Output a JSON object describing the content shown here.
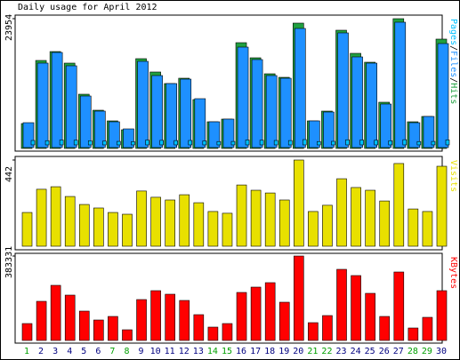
{
  "chart_data": {
    "type": "bar",
    "title": "Daily usage for April 2012",
    "categories": [
      "1",
      "2",
      "3",
      "4",
      "5",
      "6",
      "7",
      "8",
      "9",
      "10",
      "11",
      "12",
      "13",
      "14",
      "15",
      "16",
      "17",
      "18",
      "19",
      "20",
      "21",
      "22",
      "23",
      "24",
      "25",
      "26",
      "27",
      "28",
      "29",
      "30"
    ],
    "category_colors": [
      "#00a000",
      "#000080",
      "#000080",
      "#000080",
      "#000080",
      "#000080",
      "#00a000",
      "#00a000",
      "#000080",
      "#000080",
      "#000080",
      "#000080",
      "#000080",
      "#00a000",
      "#00a000",
      "#000080",
      "#000080",
      "#000080",
      "#000080",
      "#000080",
      "#00a000",
      "#00a000",
      "#000080",
      "#000080",
      "#000080",
      "#000080",
      "#000080",
      "#00a000",
      "#00a000",
      "#000080"
    ],
    "panels": [
      {
        "ylim": [
          0,
          23954
        ],
        "yticks": [
          23954
        ],
        "separator": "/",
        "series": [
          {
            "name": "Pages",
            "color": "#00c0ff",
            "values": [
              820,
              780,
              900,
              860,
              760,
              700,
              650,
              600,
              880,
              840,
              800,
              820,
              740,
              620,
              640,
              900,
              860,
              820,
              800,
              980,
              620,
              660,
              940,
              900,
              860,
              760,
              960,
              620,
              640,
              920
            ]
          },
          {
            "name": "Files",
            "color": "#1e90ff",
            "values": [
              4594,
              15587,
              17555,
              15094,
              9516,
              6727,
              4758,
              3445,
              15915,
              13290,
              11813,
              12633,
              9024,
              4758,
              5250,
              18540,
              16243,
              13290,
              12797,
              21985,
              4922,
              6563,
              21165,
              16735,
              15587,
              8039,
              23134,
              4594,
              5742,
              19196
            ]
          },
          {
            "name": "Hits",
            "color": "#20a040",
            "values": [
              4594,
              16243,
              17884,
              15751,
              10008,
              7055,
              5086,
              3445,
              16571,
              14110,
              11977,
              12962,
              9024,
              4922,
              5414,
              19524,
              16735,
              13782,
              13126,
              23134,
              5086,
              6891,
              21821,
              17555,
              15915,
              8532,
              23954,
              4922,
              5907,
              20181
            ]
          }
        ]
      },
      {
        "ylim": [
          0,
          442
        ],
        "yticks": [
          442
        ],
        "series": [
          {
            "name": "Visits",
            "color": "#e8e000",
            "values": [
              173,
              292,
              305,
              255,
              214,
              196,
              173,
              164,
              283,
              251,
              237,
              264,
              223,
              178,
              169,
              314,
              287,
              273,
              237,
              442,
              178,
              210,
              346,
              301,
              287,
              232,
              424,
              191,
              178,
              410
            ]
          }
        ]
      },
      {
        "ylim": [
          0,
          383331
        ],
        "yticks": [
          383331
        ],
        "series": [
          {
            "name": "KBytes",
            "color": "#ff0000",
            "values": [
              76665,
              177540,
              250170,
              205785,
              133155,
              92805,
              108945,
              48420,
              185610,
              225960,
              209820,
              181575,
              117015,
              60525,
              76665,
              217890,
              242100,
              262275,
              173505,
              383331,
              80700,
              112980,
              322800,
              294555,
              213855,
              108945,
              310695,
              56490,
              104910,
              225960
            ]
          }
        ]
      }
    ]
  }
}
